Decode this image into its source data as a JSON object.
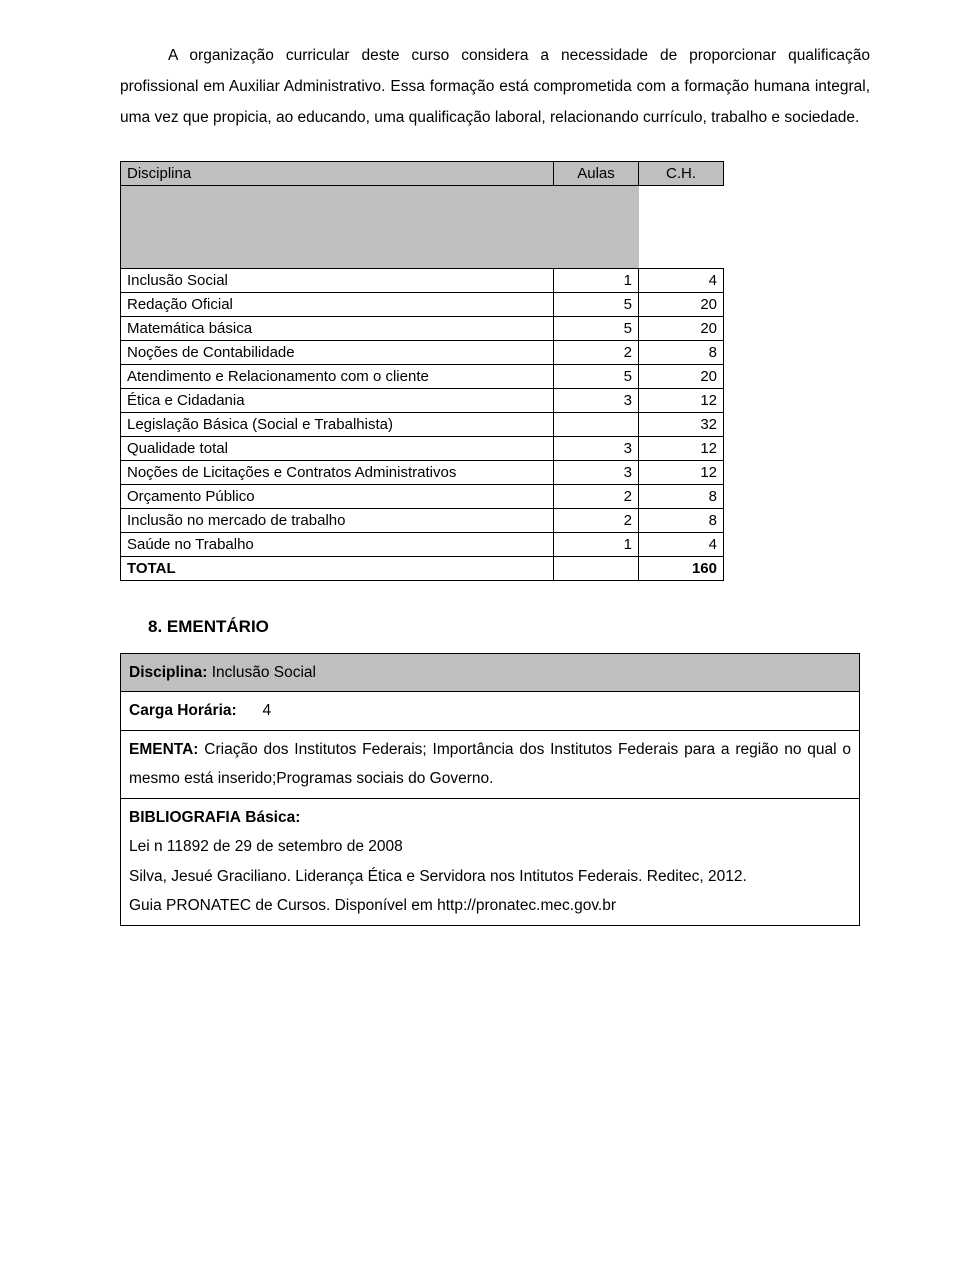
{
  "intro": {
    "p1a": "A organização curricular deste curso considera a necessidade de proporcionar qualificação profissional em Auxiliar Administrativo. Essa formação está comprometida com a formação humana integral, uma vez que propicia, ao educando, uma qualificação laboral, relacionando currículo, trabalho e sociedade."
  },
  "discipline_table": {
    "headers": {
      "disciplina": "Disciplina",
      "aulas": "Aulas",
      "ch": "C.H."
    },
    "rows": [
      {
        "d": "Inclusão Social",
        "a": "1",
        "c": "4"
      },
      {
        "d": "Redação Oficial",
        "a": "5",
        "c": "20"
      },
      {
        "d": "Matemática básica",
        "a": "5",
        "c": "20"
      },
      {
        "d": "Noções de Contabilidade",
        "a": "2",
        "c": "8"
      },
      {
        "d": "Atendimento e Relacionamento com o cliente",
        "a": "5",
        "c": "20"
      },
      {
        "d": "Ética e Cidadania",
        "a": "3",
        "c": "12"
      },
      {
        "d": "Legislação Básica (Social e Trabalhista)",
        "a": "",
        "c": "32"
      },
      {
        "d": "Qualidade total",
        "a": "3",
        "c": "12"
      },
      {
        "d": "Noções de Licitações e Contratos Administrativos",
        "a": "3",
        "c": "12"
      },
      {
        "d": "Orçamento Público",
        "a": "2",
        "c": "8"
      },
      {
        "d": "Inclusão no mercado de trabalho",
        "a": "2",
        "c": "8"
      },
      {
        "d": "Saúde no Trabalho",
        "a": "1",
        "c": "4"
      }
    ],
    "total_label": "TOTAL",
    "total_value": "160"
  },
  "section8": {
    "heading": "8. EMENTÁRIO",
    "disciplina_label": "Disciplina:",
    "disciplina_value": "Inclusão Social",
    "carga_label": "Carga Horária:",
    "carga_value": "4",
    "ementa_label": "EMENTA:",
    "ementa_text": "Criação dos Institutos Federais; Importância dos Institutos Federais para a região no qual o mesmo está inserido;Programas sociais do Governo.",
    "biblio_label": "BIBLIOGRAFIA",
    "basica_label": "Básica:",
    "bib_line1": "Lei n 11892 de 29 de setembro de 2008",
    "bib_line2": "Silva, Jesué Graciliano. Liderança Ética e Servidora nos Intitutos Federais. Reditec, 2012.",
    "bib_line3": "Guia PRONATEC de Cursos. Disponível em http://pronatec.mec.gov.br"
  }
}
